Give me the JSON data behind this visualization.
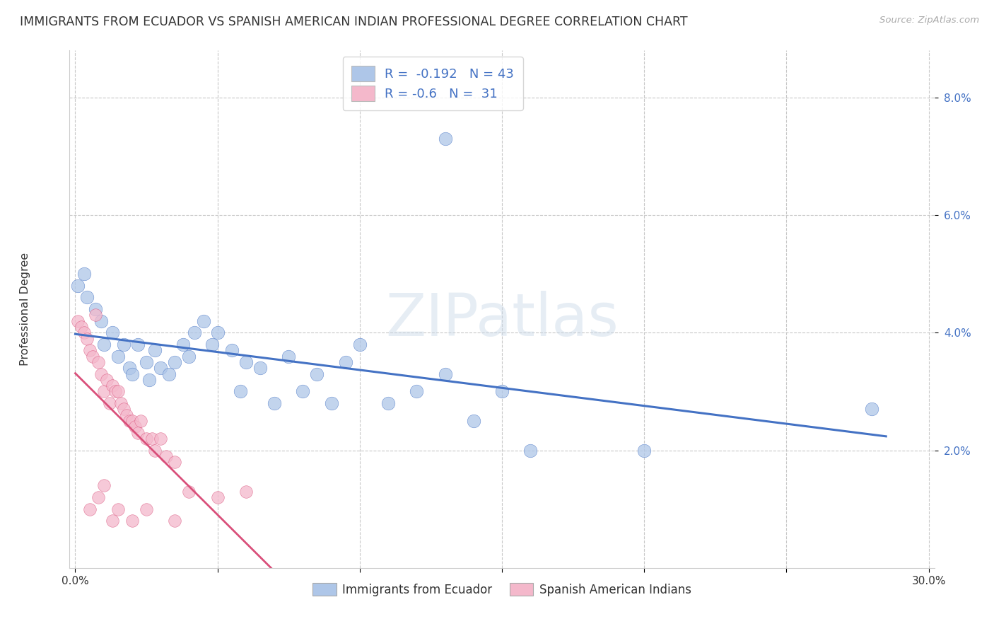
{
  "title": "IMMIGRANTS FROM ECUADOR VS SPANISH AMERICAN INDIAN PROFESSIONAL DEGREE CORRELATION CHART",
  "source": "Source: ZipAtlas.com",
  "ylabel": "Professional Degree",
  "xlim": [
    -0.002,
    0.302
  ],
  "ylim": [
    0.0,
    0.088
  ],
  "xticks": [
    0.0,
    0.05,
    0.1,
    0.15,
    0.2,
    0.25,
    0.3
  ],
  "xtick_labels": [
    "0.0%",
    "",
    "",
    "",
    "",
    "",
    "30.0%"
  ],
  "yticks": [
    0.02,
    0.04,
    0.06,
    0.08
  ],
  "ytick_labels": [
    "2.0%",
    "4.0%",
    "6.0%",
    "8.0%"
  ],
  "r_ecuador": -0.192,
  "n_ecuador": 43,
  "r_indian": -0.6,
  "n_indian": 31,
  "ecuador_color": "#aec6e8",
  "indian_color": "#f4b8cb",
  "trendline_ecuador_color": "#4472c4",
  "trendline_indian_color": "#d94f7a",
  "legend_label_ecuador": "Immigrants from Ecuador",
  "legend_label_indian": "Spanish American Indians",
  "watermark": "ZIPatlas",
  "background_color": "#ffffff",
  "grid_color": "#c8c8c8"
}
